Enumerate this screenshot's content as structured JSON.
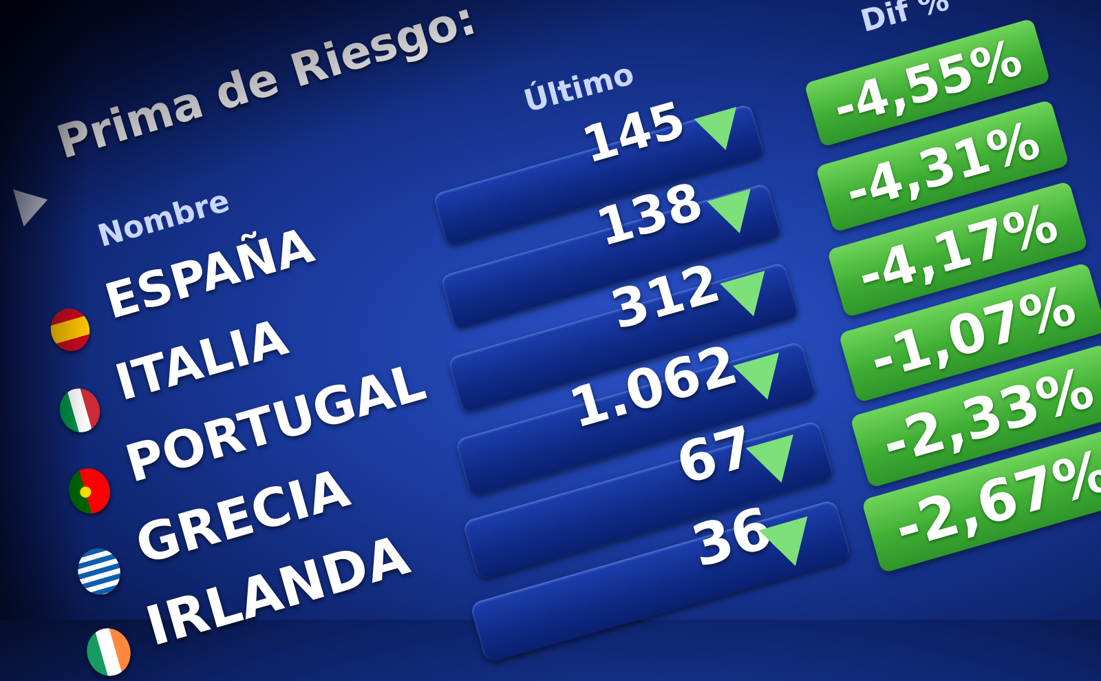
{
  "title": "Prima de Riesgo:",
  "headers": {
    "name": "Nombre",
    "last": "Último",
    "diff": "Dif %"
  },
  "colors": {
    "background": "#1a3a9e",
    "positive_box": "#3fae34",
    "down_triangle": "#7ee07a"
  },
  "rows": [
    {
      "name": "ESPAÑA",
      "flag": "spain-flag-icon",
      "last": "145",
      "trend": "down-triangle-icon",
      "diff": "-4,55%"
    },
    {
      "name": "ITALIA",
      "flag": "italy-flag-icon",
      "last": "138",
      "trend": "down-triangle-icon",
      "diff": "-4,31%"
    },
    {
      "name": "PORTUGAL",
      "flag": "portugal-flag-icon",
      "last": "312",
      "trend": "down-triangle-icon",
      "diff": "-4,17%"
    },
    {
      "name": "GRECIA",
      "flag": "greece-flag-icon",
      "last": "1.062",
      "trend": "down-triangle-icon",
      "diff": "-1,07%"
    },
    {
      "name": "IRLANDA",
      "flag": "ireland-flag-icon",
      "last": "67",
      "trend": "down-triangle-icon",
      "diff": "-2,33%"
    },
    {
      "name": "",
      "flag": "",
      "last": "36",
      "trend": "down-triangle-icon",
      "diff": "-2,67%"
    }
  ]
}
